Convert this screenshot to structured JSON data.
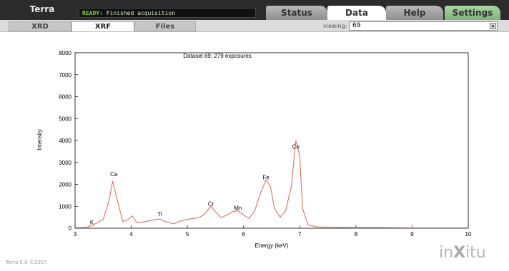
{
  "app": {
    "name": "Terra",
    "status_ready": "READY:",
    "status_message": "Finished acquisition",
    "version": "Terra 5.0 ©2007"
  },
  "tabs": [
    {
      "label": "Status"
    },
    {
      "label": "Data"
    },
    {
      "label": "Help"
    },
    {
      "label": "Settings"
    }
  ],
  "subtabs": [
    {
      "label": "XRD"
    },
    {
      "label": "XRF"
    },
    {
      "label": "Files"
    }
  ],
  "viewing": {
    "label": "viewing:",
    "value": "69"
  },
  "logo": {
    "text": "inXitu"
  },
  "colors": {
    "curve": "#e07060",
    "selected_tab": "#ffffff",
    "settings_tab": "#8fc48a"
  },
  "chart_data": {
    "type": "line",
    "title": "Dataset 69: 279 exposures",
    "xlabel": "Energy (keV)",
    "ylabel": "Intensity",
    "xlim": [
      3,
      10
    ],
    "ylim": [
      0,
      8000
    ],
    "xticks": [
      "3",
      "4",
      "5",
      "6",
      "7",
      "8",
      "9",
      "10"
    ],
    "yticks": [
      "0",
      "1000",
      "2000",
      "3000",
      "4000",
      "5000",
      "6000",
      "7000",
      "8000"
    ],
    "grid": false,
    "series": [
      {
        "x": [
          3.0,
          3.2,
          3.3,
          3.5,
          3.6,
          3.67,
          3.75,
          3.85,
          3.95,
          4.02,
          4.1,
          4.25,
          4.4,
          4.51,
          4.6,
          4.75,
          4.9,
          5.05,
          5.2,
          5.3,
          5.42,
          5.5,
          5.6,
          5.7,
          5.8,
          5.9,
          6.0,
          6.1,
          6.2,
          6.3,
          6.4,
          6.48,
          6.55,
          6.65,
          6.75,
          6.85,
          6.93,
          7.0,
          7.05,
          7.15,
          7.3,
          7.6,
          8.0,
          8.5,
          9.0,
          9.5,
          10.0
        ],
        "values": [
          20,
          40,
          120,
          400,
          1200,
          2150,
          1300,
          300,
          400,
          560,
          250,
          300,
          380,
          420,
          310,
          200,
          350,
          420,
          480,
          620,
          1000,
          750,
          480,
          600,
          750,
          800,
          600,
          450,
          800,
          1600,
          2200,
          1900,
          900,
          500,
          800,
          1900,
          4000,
          3300,
          900,
          150,
          60,
          40,
          30,
          30,
          20,
          20,
          20
        ]
      }
    ],
    "annotations": [
      {
        "text": "K",
        "x": 3.3,
        "y": 50
      },
      {
        "text": "Ca",
        "x": 3.69,
        "y": 2250
      },
      {
        "text": "Ti",
        "x": 4.51,
        "y": 430
      },
      {
        "text": "Cr",
        "x": 5.42,
        "y": 900
      },
      {
        "text": "Mn",
        "x": 5.9,
        "y": 700
      },
      {
        "text": "Fe",
        "x": 6.4,
        "y": 2100
      },
      {
        "text": "Co",
        "x": 6.93,
        "y": 3500
      }
    ]
  }
}
